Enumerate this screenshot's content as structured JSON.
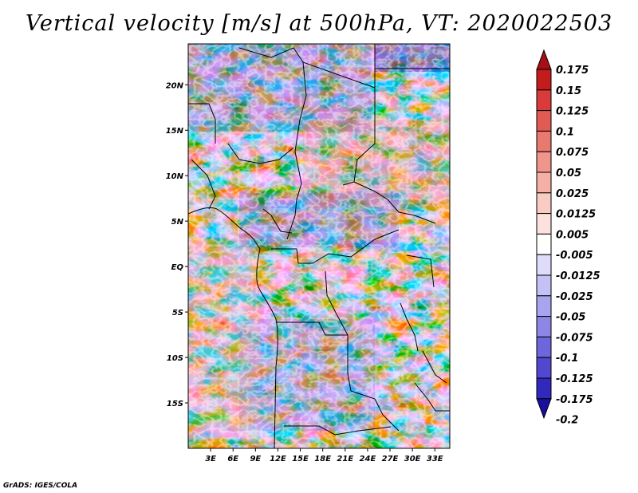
{
  "title": "Vertical velocity [m/s] at 500hPa, VT: 2020022503",
  "credit": "GrADS: IGES/COLA",
  "map": {
    "lat_labels": [
      "20N",
      "15N",
      "10N",
      "5N",
      "EQ",
      "5S",
      "10S",
      "15S"
    ],
    "lon_labels": [
      "3E",
      "6E",
      "9E",
      "12E",
      "15E",
      "18E",
      "21E",
      "24E",
      "27E",
      "30E",
      "33E"
    ],
    "lat_values": [
      20,
      15,
      10,
      5,
      0,
      -5,
      -10,
      -15
    ],
    "lon_values": [
      3,
      6,
      9,
      12,
      15,
      18,
      21,
      24,
      27,
      30,
      33
    ],
    "lat_range": [
      -20,
      24.5
    ],
    "lon_range": [
      0,
      35
    ]
  },
  "colorbar": {
    "labels": [
      "0.175",
      "0.15",
      "0.125",
      "0.1",
      "0.075",
      "0.05",
      "0.025",
      "0.0125",
      "0.005",
      "-0.005",
      "-0.0125",
      "-0.025",
      "-0.05",
      "-0.075",
      "-0.1",
      "-0.125",
      "-0.175",
      "-0.2"
    ],
    "colors": [
      "#a50f15",
      "#c21c1c",
      "#d93a3a",
      "#e25a54",
      "#e9786f",
      "#ef958a",
      "#f4b0a6",
      "#f8cbc3",
      "#fbe2dd",
      "#ffffff",
      "#dedcf8",
      "#c4c1f4",
      "#a8a4ee",
      "#8c86e6",
      "#6e66dc",
      "#5048cf",
      "#3128bd",
      "#1a0e9c"
    ]
  }
}
